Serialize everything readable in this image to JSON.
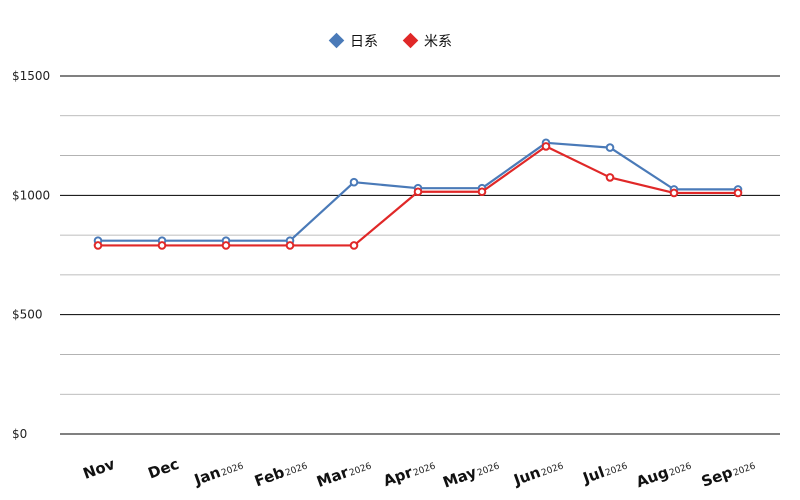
{
  "chart_data": {
    "type": "line",
    "categories": [
      "Nov",
      "Dec",
      "Jan",
      "Feb",
      "Mar",
      "Apr",
      "May",
      "Jun",
      "Jul",
      "Aug",
      "Sep"
    ],
    "category_year_labels": [
      "",
      "",
      "2026",
      "2026",
      "2026",
      "2026",
      "2026",
      "2026",
      "2026",
      "2026",
      "2026"
    ],
    "series": [
      {
        "name": "日系",
        "color": "#4a7ab8",
        "values": [
          810,
          810,
          810,
          810,
          1055,
          1030,
          1030,
          1220,
          1200,
          1025,
          1025
        ]
      },
      {
        "name": "米系",
        "color": "#e02828",
        "values": [
          790,
          790,
          790,
          790,
          790,
          1015,
          1015,
          1205,
          1075,
          1010,
          1010
        ]
      }
    ],
    "yticks": [
      0,
      500,
      1000,
      1500
    ],
    "ytick_labels": [
      "$0",
      "$500",
      "$1000",
      "$1500"
    ],
    "ylim": [
      0,
      1500
    ],
    "grid": true,
    "legend_position": "top-center",
    "title": "",
    "xlabel": "",
    "ylabel": ""
  }
}
